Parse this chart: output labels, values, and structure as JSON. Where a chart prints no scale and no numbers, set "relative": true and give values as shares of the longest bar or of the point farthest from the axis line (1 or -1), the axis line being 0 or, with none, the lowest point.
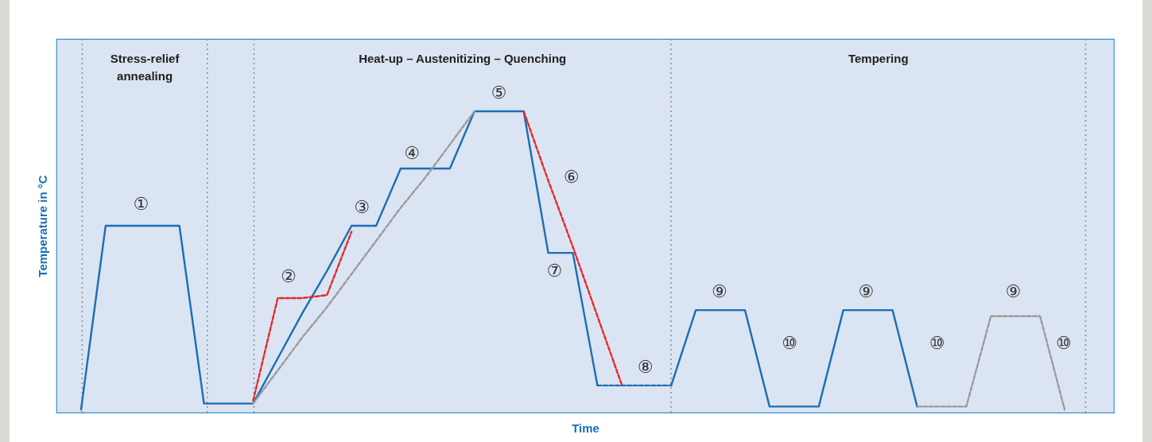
{
  "chart_data": {
    "type": "line",
    "relative": true,
    "xlabel": "Time",
    "ylabel": "Temperature in °C",
    "tick_labels": false,
    "categories": [
      null,
      null,
      null,
      null,
      null,
      null,
      null,
      null,
      null,
      null,
      null,
      null,
      null,
      null,
      null,
      null,
      null,
      null,
      null,
      null,
      null,
      null,
      null,
      null,
      null,
      null,
      null,
      null,
      null,
      null,
      null,
      null,
      null,
      null,
      null,
      null,
      null,
      null,
      null,
      null,
      null,
      null
    ],
    "series": [
      {
        "color": "#1a6eb4",
        "line_style": "solid",
        "values": [
          0.01,
          0.62,
          0.62,
          0.62,
          0.62,
          0.03,
          0.03,
          0.03,
          0.18,
          0.33,
          0.47,
          0.62,
          0.62,
          0.81,
          0.81,
          0.81,
          1,
          1,
          1,
          0.53,
          0.53,
          0.09,
          null,
          null,
          null,
          null,
          null,
          null,
          null,
          null,
          null,
          null,
          null,
          null,
          null,
          null,
          null,
          null,
          null,
          null,
          null,
          null
        ]
      },
      {
        "color": "#1a6eb4",
        "line_style": "dashed",
        "values": [
          null,
          null,
          null,
          null,
          null,
          null,
          null,
          null,
          null,
          null,
          null,
          null,
          null,
          null,
          null,
          null,
          null,
          null,
          null,
          null,
          null,
          0.09,
          0.09,
          0.09,
          0.09,
          null,
          null,
          null,
          null,
          null,
          null,
          null,
          null,
          null,
          null,
          null,
          null,
          null,
          null,
          null,
          null,
          null
        ]
      },
      {
        "color": "#1a6eb4",
        "line_style": "solid",
        "values": [
          null,
          null,
          null,
          null,
          null,
          null,
          null,
          null,
          null,
          null,
          null,
          null,
          null,
          null,
          null,
          null,
          null,
          null,
          null,
          null,
          null,
          null,
          null,
          null,
          0.09,
          0.34,
          0.34,
          0.34,
          0.02,
          0.02,
          0.02,
          0.34,
          0.34,
          0.34,
          0.02,
          null,
          null,
          null,
          null,
          null,
          null,
          null
        ]
      },
      {
        "color": "#9a9a9a",
        "line_style": "dashed",
        "values": [
          null,
          null,
          null,
          null,
          null,
          null,
          null,
          null,
          null,
          null,
          null,
          null,
          null,
          null,
          null,
          null,
          null,
          null,
          null,
          null,
          null,
          null,
          null,
          null,
          null,
          null,
          null,
          null,
          null,
          null,
          null,
          null,
          null,
          null,
          0.02,
          0.02,
          0.02,
          0.32,
          0.32,
          0.32,
          0.01,
          null
        ]
      },
      {
        "color": "#e8262a",
        "line_style": "dashed",
        "values": [
          null,
          null,
          null,
          null,
          null,
          null,
          null,
          0.04,
          0.38,
          0.38,
          0.39,
          0.6,
          null,
          null,
          null,
          null,
          null,
          null,
          null,
          null,
          null,
          null,
          null,
          null,
          null,
          null,
          null,
          null,
          null,
          null,
          null,
          null,
          null,
          null,
          null,
          null,
          null,
          null,
          null,
          null,
          null,
          null
        ]
      },
      {
        "color": "#e8262a",
        "line_style": "dashed",
        "values": [
          null,
          null,
          null,
          null,
          null,
          null,
          null,
          null,
          null,
          null,
          null,
          null,
          null,
          null,
          null,
          null,
          null,
          null,
          1,
          0.77,
          0.55,
          0.32,
          0.09,
          null,
          null,
          null,
          null,
          null,
          null,
          null,
          null,
          null,
          null,
          null,
          null,
          null,
          null,
          null,
          null,
          null,
          null,
          null
        ]
      },
      {
        "color": "#9a9a9a",
        "line_style": "dashed",
        "values": [
          null,
          null,
          null,
          null,
          null,
          null,
          null,
          0.03,
          0.14,
          0.25,
          0.35,
          0.46,
          0.57,
          0.68,
          0.78,
          0.89,
          1,
          null,
          null,
          null,
          null,
          null,
          null,
          null,
          null,
          null,
          null,
          null,
          null,
          null,
          null,
          null,
          null,
          null,
          null,
          null,
          null,
          null,
          null,
          null,
          null,
          null
        ]
      }
    ],
    "annotations": [
      "Stress-relief annealing",
      "Heat-up – Austenitizing – Quenching",
      "Tempering",
      "①",
      "②",
      "③",
      "④",
      "⑤",
      "⑥",
      "⑦",
      "⑧",
      "⑨",
      "⑨",
      "⑨",
      "⑩",
      "⑩",
      "⑩"
    ]
  }
}
